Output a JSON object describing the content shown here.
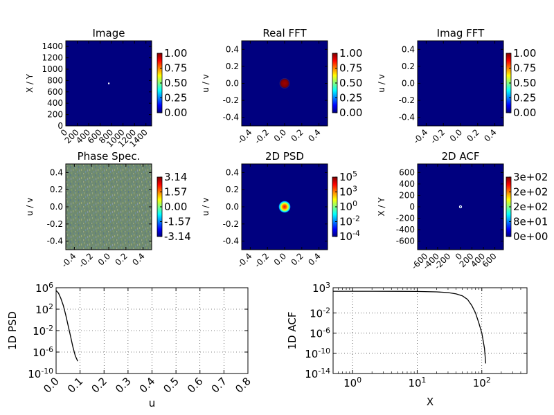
{
  "colors": {
    "jet_low": "#00007f",
    "jet_stops": [
      "#00007f",
      "#0000ff",
      "#0080ff",
      "#00ffff",
      "#80ff80",
      "#ffff00",
      "#ff8000",
      "#ff0000",
      "#7f0000"
    ],
    "line": "#000000",
    "grid": "#000000",
    "noise_base": "#6f8a70"
  },
  "chart_data": [
    {
      "type": "heatmap",
      "title": "Image",
      "ylabel": "X / Y",
      "xticks": [
        "0",
        "200",
        "400",
        "600",
        "800",
        "1000",
        "1200",
        "1400"
      ],
      "yticks": [
        "0",
        "200",
        "400",
        "600",
        "800",
        "1000",
        "1200",
        "1400"
      ],
      "xlim": [
        0,
        1500
      ],
      "ylim": [
        0,
        1500
      ],
      "colorbar": {
        "min": 0.0,
        "max": 1.0,
        "ticks": [
          "0.00",
          "0.25",
          "0.50",
          "0.75",
          "1.00"
        ]
      },
      "features": [
        {
          "shape": "point",
          "x": 750,
          "y": 750,
          "value": 1.0
        }
      ]
    },
    {
      "type": "heatmap",
      "title": "Real FFT",
      "ylabel": "u / v",
      "xticks": [
        "-0.4",
        "-0.2",
        "0.0",
        "0.2",
        "0.4"
      ],
      "yticks": [
        "-0.4",
        "-0.2",
        "0.0",
        "0.2",
        "0.4"
      ],
      "xlim": [
        -0.5,
        0.5
      ],
      "ylim": [
        -0.5,
        0.5
      ],
      "colorbar": {
        "min": 0.0,
        "max": 1.0,
        "ticks": [
          "0.00",
          "0.25",
          "0.50",
          "0.75",
          "1.00"
        ]
      },
      "features": [
        {
          "shape": "disk",
          "x": 0.0,
          "y": 0.0,
          "r": 0.06,
          "value": 0.95
        }
      ]
    },
    {
      "type": "heatmap",
      "title": "Imag FFT",
      "ylabel": "u / v",
      "xticks": [
        "-0.4",
        "-0.2",
        "0.0",
        "0.2",
        "0.4"
      ],
      "yticks": [
        "-0.4",
        "-0.2",
        "0.0",
        "0.2",
        "0.4"
      ],
      "xlim": [
        -0.5,
        0.5
      ],
      "ylim": [
        -0.5,
        0.5
      ],
      "colorbar": {
        "min": 0.0,
        "max": 1.0,
        "ticks": [
          "0.00",
          "0.25",
          "0.50",
          "0.75",
          "1.00"
        ]
      },
      "features": []
    },
    {
      "type": "heatmap",
      "title": "Phase Spec.",
      "ylabel": "u / v",
      "xticks": [
        "-0.4",
        "-0.2",
        "0.0",
        "0.2",
        "0.4"
      ],
      "yticks": [
        "-0.4",
        "-0.2",
        "0.0",
        "0.2",
        "0.4"
      ],
      "xlim": [
        -0.5,
        0.5
      ],
      "ylim": [
        -0.5,
        0.5
      ],
      "colorbar": {
        "min": -3.14,
        "max": 3.14,
        "ticks": [
          "-3.14",
          "-1.57",
          "0.00",
          "1.57",
          "3.14"
        ]
      },
      "features": [
        {
          "shape": "noise"
        }
      ]
    },
    {
      "type": "heatmap",
      "title": "2D PSD",
      "ylabel": "u / v",
      "xticks": [
        "-0.4",
        "-0.2",
        "0.0",
        "0.2",
        "0.4"
      ],
      "yticks": [
        "-0.4",
        "-0.2",
        "0.0",
        "0.2",
        "0.4"
      ],
      "xlim": [
        -0.5,
        0.5
      ],
      "ylim": [
        -0.5,
        0.5
      ],
      "colorbar": {
        "scale": "log",
        "ticks": [
          "10^-4",
          "10^-2",
          "10^0",
          "10^3",
          "10^5"
        ]
      },
      "features": [
        {
          "shape": "gaussian",
          "x": 0.0,
          "y": 0.0,
          "r": 0.07
        }
      ]
    },
    {
      "type": "heatmap",
      "title": "2D ACF",
      "ylabel": "X / Y",
      "xticks": [
        "-600",
        "-400",
        "-200",
        "0",
        "200",
        "400",
        "600"
      ],
      "yticks": [
        "-600",
        "-400",
        "-200",
        "0",
        "200",
        "400",
        "600"
      ],
      "xlim": [
        -750,
        750
      ],
      "ylim": [
        -750,
        750
      ],
      "colorbar": {
        "ticks": [
          "0e+00",
          "8e+01",
          "2e+02",
          "2e+02",
          "3e+02"
        ]
      },
      "features": [
        {
          "shape": "ring",
          "x": 0,
          "y": 0,
          "r": 20
        }
      ]
    },
    {
      "type": "line",
      "xlabel": "u",
      "ylabel": "1D PSD",
      "yscale": "log",
      "xlim": [
        0.0,
        0.8
      ],
      "ylim": [
        1e-10,
        1000000.0
      ],
      "xticks": [
        "0.0",
        "0.1",
        "0.2",
        "0.3",
        "0.4",
        "0.5",
        "0.6",
        "0.7",
        "0.8"
      ],
      "yticks": [
        "10^-10",
        "10^-6",
        "10^-2",
        "10^2",
        "10^6"
      ],
      "grid": true,
      "x": [
        0.0,
        0.01,
        0.02,
        0.03,
        0.04,
        0.05,
        0.06,
        0.07,
        0.08,
        0.09
      ],
      "y": [
        300000.0,
        100000.0,
        10000.0,
        500,
        10,
        0.1,
        0.001,
        1e-05,
        2e-07,
        2e-08
      ]
    },
    {
      "type": "line",
      "xlabel": "X",
      "ylabel": "1D ACF",
      "xscale": "log",
      "yscale": "log",
      "xlim": [
        0.5,
        500
      ],
      "ylim": [
        1e-14,
        1000.0
      ],
      "xticks": [
        "10^0",
        "10^1",
        "10^2"
      ],
      "yticks": [
        "10^-14",
        "10^-10",
        "10^-6",
        "10^-2",
        "10^3"
      ],
      "grid": true,
      "x": [
        0.5,
        1,
        2,
        5,
        10,
        20,
        30,
        40,
        50,
        60,
        70,
        80,
        90,
        100,
        110,
        115
      ],
      "y": [
        200,
        200,
        200,
        195,
        180,
        150,
        110,
        60,
        25,
        5,
        0.3,
        0.01,
        0.0001,
        1e-06,
        1e-09,
        1e-12
      ]
    }
  ]
}
